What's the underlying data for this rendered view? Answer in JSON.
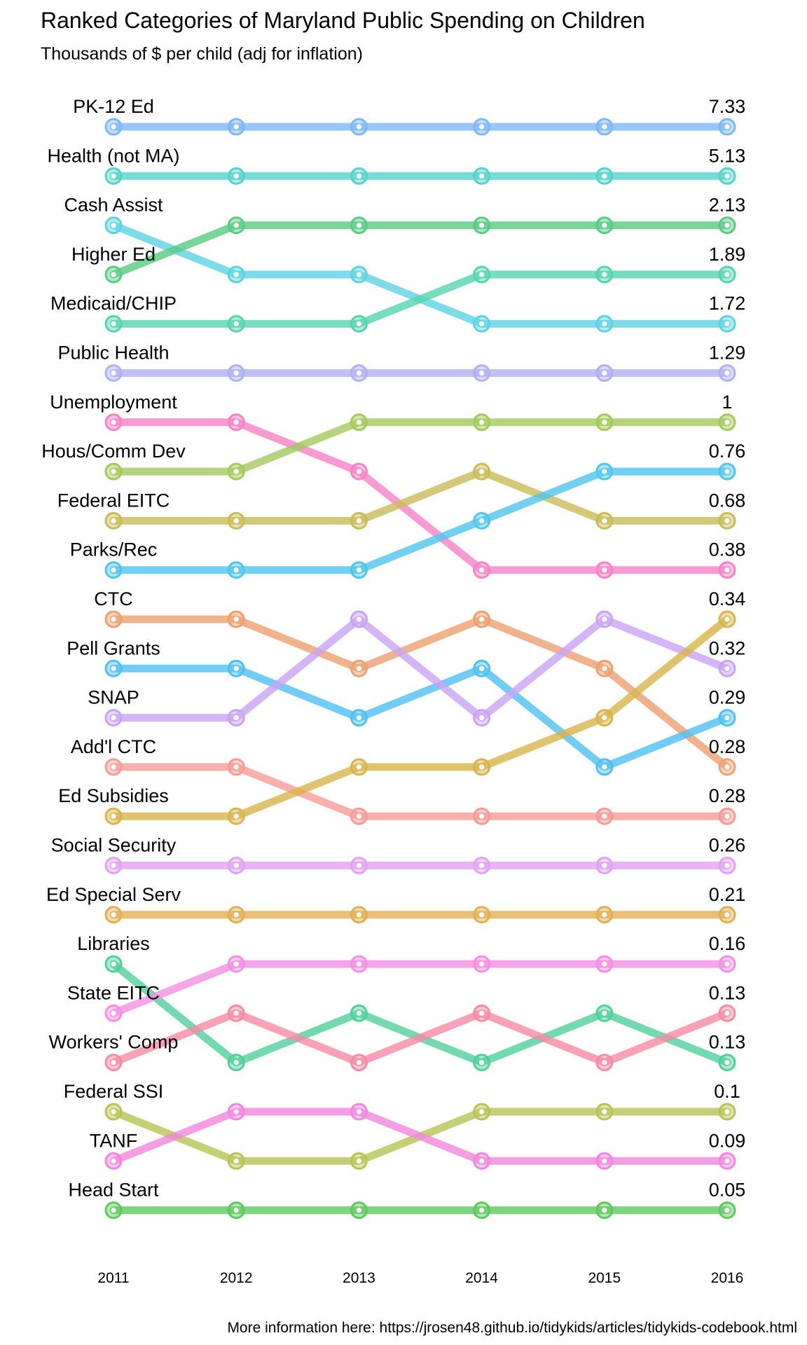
{
  "chart_data": {
    "type": "line",
    "title": "Ranked Categories of Maryland Public Spending on Children",
    "subtitle": "Thousands of $ per child (adj for inflation)",
    "caption": "More information here: https://jrosen48.github.io/tidykids/articles/tidykids-codebook.html",
    "x": [
      "2011",
      "2012",
      "2013",
      "2014",
      "2015",
      "2016"
    ],
    "rank_labels": [
      "PK-12 Ed",
      "Health (not MA)",
      "Cash Assist",
      "Higher Ed",
      "Medicaid/CHIP",
      "Public Health",
      "Unemployment",
      "Hous/Comm Dev",
      "Federal EITC",
      "Parks/Rec",
      "CTC",
      "Pell Grants",
      "SNAP",
      "Add'l CTC",
      "Ed Subsidies",
      "Social Security",
      "Ed Special Serv",
      "Libraries",
      "State EITC",
      "Workers' Comp",
      "Federal SSI",
      "TANF",
      "Head Start"
    ],
    "end_values": [
      "7.33",
      "5.13",
      "2.13",
      "1.89",
      "1.72",
      "1.29",
      "1",
      "0.76",
      "0.68",
      "0.38",
      "0.34",
      "0.32",
      "0.29",
      "0.28",
      "0.28",
      "0.26",
      "0.21",
      "0.16",
      "0.13",
      "0.13",
      "0.1",
      "0.09",
      "0.05"
    ],
    "series": [
      {
        "color": "#7db8f5",
        "ranks": [
          1,
          1,
          1,
          1,
          1,
          1
        ]
      },
      {
        "color": "#55d3cd",
        "ranks": [
          2,
          2,
          2,
          2,
          2,
          2
        ]
      },
      {
        "color": "#5cd3e3",
        "ranks": [
          3,
          4,
          4,
          5,
          5,
          5
        ]
      },
      {
        "color": "#58cc82",
        "ranks": [
          4,
          3,
          3,
          3,
          3,
          3
        ]
      },
      {
        "color": "#55d4b2",
        "ranks": [
          5,
          5,
          5,
          4,
          4,
          4
        ]
      },
      {
        "color": "#b0b0f4",
        "ranks": [
          6,
          6,
          6,
          6,
          6,
          6
        ]
      },
      {
        "color": "#f882c7",
        "ranks": [
          7,
          7,
          8,
          10,
          10,
          10
        ]
      },
      {
        "color": "#a3c95a",
        "ranks": [
          8,
          8,
          7,
          7,
          7,
          7
        ]
      },
      {
        "color": "#c9bc56",
        "ranks": [
          9,
          9,
          9,
          8,
          9,
          9
        ]
      },
      {
        "color": "#4fc6ec",
        "ranks": [
          10,
          10,
          10,
          9,
          8,
          8
        ]
      },
      {
        "color": "#eea06e",
        "ranks": [
          11,
          11,
          12,
          11,
          12,
          14
        ]
      },
      {
        "color": "#4fc0f2",
        "ranks": [
          12,
          12,
          13,
          12,
          14,
          13
        ]
      },
      {
        "color": "#c9a4f6",
        "ranks": [
          13,
          13,
          11,
          13,
          11,
          12
        ]
      },
      {
        "color": "#f69c97",
        "ranks": [
          14,
          14,
          15,
          15,
          15,
          15
        ]
      },
      {
        "color": "#d8b449",
        "ranks": [
          15,
          15,
          14,
          14,
          13,
          11
        ]
      },
      {
        "color": "#e2a1f5",
        "ranks": [
          16,
          16,
          16,
          16,
          16,
          16
        ]
      },
      {
        "color": "#e2af52",
        "ranks": [
          17,
          17,
          17,
          17,
          17,
          17
        ]
      },
      {
        "color": "#4fd09e",
        "ranks": [
          18,
          20,
          19,
          20,
          19,
          20
        ]
      },
      {
        "color": "#f58ee4",
        "ranks": [
          19,
          18,
          18,
          18,
          18,
          18
        ]
      },
      {
        "color": "#f78aa4",
        "ranks": [
          20,
          19,
          20,
          19,
          20,
          19
        ]
      },
      {
        "color": "#b7c454",
        "ranks": [
          21,
          22,
          22,
          21,
          21,
          21
        ]
      },
      {
        "color": "#f386dd",
        "ranks": [
          22,
          21,
          21,
          22,
          22,
          22
        ]
      },
      {
        "color": "#5fc95f",
        "ranks": [
          23,
          23,
          23,
          23,
          23,
          23
        ]
      }
    ]
  }
}
